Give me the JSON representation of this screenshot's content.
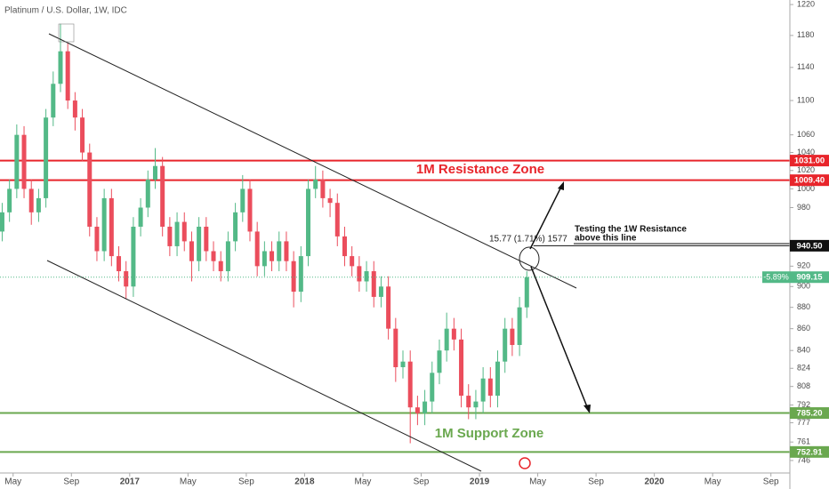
{
  "chart_data": {
    "type": "candlestick",
    "title": "Platinum / U.S. Dollar, 1W, IDC",
    "log_scale": true,
    "ylim": [
      736,
      1226
    ],
    "yticks": [
      1220,
      1180,
      1140,
      1100,
      1060,
      1040,
      1020,
      1000,
      980,
      920,
      900,
      880,
      860,
      840,
      824,
      808,
      792,
      777,
      761,
      746
    ],
    "xlim": [
      3.1,
      57.3
    ],
    "xticks": [
      {
        "value": 4,
        "label": "May"
      },
      {
        "value": 8,
        "label": "Sep"
      },
      {
        "value": 12,
        "label": "2017"
      },
      {
        "value": 16,
        "label": "May"
      },
      {
        "value": 20,
        "label": "Sep"
      },
      {
        "value": 24,
        "label": "2018"
      },
      {
        "value": 28,
        "label": "May"
      },
      {
        "value": 32,
        "label": "Sep"
      },
      {
        "value": 36,
        "label": "2019"
      },
      {
        "value": 40,
        "label": "May"
      },
      {
        "value": 44,
        "label": "Sep"
      },
      {
        "value": 48,
        "label": "2020"
      },
      {
        "value": 52,
        "label": "May"
      },
      {
        "value": 56,
        "label": "Sep"
      }
    ],
    "up_color": "#53b987",
    "down_color": "#eb4d5c",
    "x": [
      3.25,
      3.75,
      4.25,
      4.75,
      5.25,
      5.75,
      6.25,
      6.75,
      7.25,
      7.75,
      8.25,
      8.75,
      9.25,
      9.75,
      10.25,
      10.75,
      11.25,
      11.75,
      12.25,
      12.75,
      13.25,
      13.75,
      14.25,
      14.75,
      15.25,
      15.75,
      16.25,
      16.75,
      17.25,
      17.75,
      18.25,
      18.75,
      19.25,
      19.75,
      20.25,
      20.75,
      21.25,
      21.75,
      22.25,
      22.75,
      23.25,
      23.75,
      24.25,
      24.75,
      25.25,
      25.75,
      26.25,
      26.75,
      27.25,
      27.75,
      28.25,
      28.75,
      29.25,
      29.75,
      30.25,
      30.75,
      31.25,
      31.75,
      32.25,
      32.75,
      33.25,
      33.75,
      34.25,
      34.75,
      35.25,
      35.75,
      36.25,
      36.75,
      37.25,
      37.75,
      38.25,
      38.75,
      39.25
    ],
    "open": [
      955,
      975,
      1000,
      1060,
      1000,
      975,
      990,
      1080,
      1120,
      1160,
      1100,
      1080,
      1040,
      960,
      935,
      990,
      930,
      915,
      900,
      960,
      980,
      1010,
      1025,
      960,
      940,
      965,
      945,
      925,
      960,
      935,
      925,
      915,
      945,
      975,
      1000,
      955,
      920,
      935,
      925,
      945,
      925,
      895,
      930,
      1000,
      1010,
      990,
      985,
      950,
      930,
      920,
      905,
      915,
      890,
      900,
      860,
      825,
      830,
      790,
      785,
      795,
      820,
      840,
      860,
      850,
      800,
      790,
      795,
      815,
      800,
      830,
      860,
      845,
      880
    ],
    "high": [
      985,
      1010,
      1072,
      1070,
      1010,
      1000,
      1090,
      1135,
      1195,
      1170,
      1110,
      1090,
      1050,
      970,
      1000,
      1000,
      940,
      925,
      970,
      990,
      1020,
      1045,
      1035,
      970,
      975,
      975,
      955,
      970,
      970,
      945,
      935,
      955,
      985,
      1015,
      1010,
      965,
      945,
      945,
      955,
      955,
      935,
      940,
      1010,
      1025,
      1020,
      1000,
      995,
      960,
      940,
      930,
      925,
      925,
      910,
      910,
      870,
      840,
      840,
      800,
      805,
      830,
      850,
      875,
      870,
      860,
      810,
      805,
      825,
      825,
      840,
      870,
      870,
      890,
      915
    ],
    "low": [
      945,
      965,
      990,
      990,
      962,
      965,
      980,
      1070,
      1110,
      1090,
      1065,
      1030,
      950,
      925,
      925,
      920,
      905,
      888,
      890,
      950,
      970,
      1000,
      950,
      930,
      930,
      935,
      905,
      915,
      925,
      915,
      905,
      905,
      935,
      965,
      945,
      910,
      910,
      915,
      915,
      915,
      880,
      885,
      920,
      990,
      980,
      970,
      940,
      920,
      910,
      895,
      895,
      880,
      880,
      850,
      812,
      815,
      760,
      775,
      775,
      785,
      810,
      830,
      840,
      790,
      780,
      780,
      785,
      790,
      790,
      820,
      835,
      835,
      870
    ],
    "close": [
      975,
      1000,
      1060,
      1000,
      975,
      990,
      1080,
      1120,
      1160,
      1100,
      1080,
      1040,
      960,
      935,
      990,
      930,
      915,
      900,
      960,
      980,
      1010,
      1025,
      960,
      940,
      965,
      945,
      925,
      960,
      935,
      925,
      915,
      945,
      975,
      1000,
      955,
      920,
      935,
      925,
      945,
      925,
      895,
      930,
      1000,
      1010,
      990,
      985,
      950,
      930,
      920,
      905,
      915,
      890,
      900,
      860,
      825,
      830,
      790,
      785,
      795,
      820,
      840,
      860,
      850,
      800,
      790,
      795,
      815,
      800,
      830,
      860,
      845,
      880,
      909.15
    ],
    "levels": [
      {
        "value": 1031.0,
        "label": "1031.00",
        "color": "#e8252b"
      },
      {
        "value": 1009.4,
        "label": "1009.40",
        "color": "#e8252b"
      },
      {
        "value": 940.5,
        "label": "940.50",
        "color": "#111111"
      },
      {
        "value": 785.2,
        "label": "785.20",
        "color": "#6aa84f"
      },
      {
        "value": 752.91,
        "label": "752.91",
        "color": "#6aa84f"
      }
    ],
    "last_price": {
      "value": 909.15,
      "label": "909.15",
      "change": "-5.89%",
      "color": "#53b987"
    },
    "annotations": {
      "resistance": "1M Resistance Zone",
      "support": "1M Support Zone",
      "note": [
        "Testing the 1W Resistance",
        "above this line"
      ],
      "measure": "15.77 (1.71%) 1577"
    }
  }
}
